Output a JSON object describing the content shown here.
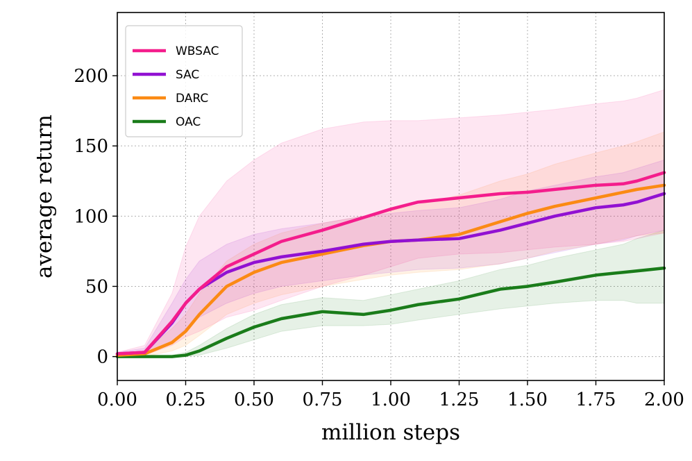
{
  "chart_data": {
    "type": "line",
    "title": "",
    "xlabel": "million steps",
    "ylabel": "average return",
    "xlim": [
      0,
      2
    ],
    "ylim": [
      -17,
      245
    ],
    "grid": true,
    "legend_position": "top-left",
    "x_ticks": [
      {
        "value": 0.0,
        "label": "0.00"
      },
      {
        "value": 0.25,
        "label": "0.25"
      },
      {
        "value": 0.5,
        "label": "0.50"
      },
      {
        "value": 0.75,
        "label": "0.75"
      },
      {
        "value": 1.0,
        "label": "1.00"
      },
      {
        "value": 1.25,
        "label": "1.25"
      },
      {
        "value": 1.5,
        "label": "1.50"
      },
      {
        "value": 1.75,
        "label": "1.75"
      },
      {
        "value": 2.0,
        "label": "2.00"
      }
    ],
    "y_ticks": [
      {
        "value": 0,
        "label": "0"
      },
      {
        "value": 50,
        "label": "50"
      },
      {
        "value": 100,
        "label": "100"
      },
      {
        "value": 150,
        "label": "150"
      },
      {
        "value": 200,
        "label": "200"
      }
    ],
    "x": [
      0,
      0.1,
      0.2,
      0.25,
      0.3,
      0.4,
      0.5,
      0.6,
      0.75,
      0.9,
      1.0,
      1.1,
      1.25,
      1.4,
      1.5,
      1.6,
      1.75,
      1.85,
      1.9,
      2.0
    ],
    "series": [
      {
        "name": "WBSAC",
        "color": "#f41d8c",
        "values": [
          2,
          3,
          25,
          38,
          48,
          64,
          73,
          82,
          90,
          99,
          105,
          110,
          113,
          116,
          117,
          119,
          122,
          123,
          125,
          131
        ],
        "band_upper": [
          3,
          8,
          45,
          78,
          100,
          125,
          140,
          152,
          162,
          167,
          168,
          168,
          170,
          172,
          174,
          176,
          180,
          182,
          184,
          190
        ],
        "band_lower": [
          0,
          1,
          8,
          14,
          18,
          28,
          33,
          40,
          50,
          58,
          64,
          70,
          73,
          74,
          76,
          78,
          80,
          82,
          84,
          88
        ]
      },
      {
        "name": "SAC",
        "color": "#9111d2",
        "values": [
          2,
          3,
          24,
          38,
          48,
          60,
          67,
          71,
          75,
          80,
          82,
          83,
          84,
          90,
          95,
          100,
          106,
          108,
          110,
          116
        ],
        "band_upper": [
          3,
          6,
          38,
          55,
          68,
          80,
          87,
          91,
          95,
          100,
          102,
          104,
          106,
          112,
          118,
          122,
          128,
          131,
          134,
          140
        ],
        "band_lower": [
          0,
          1,
          10,
          20,
          28,
          38,
          45,
          50,
          54,
          58,
          60,
          62,
          63,
          66,
          70,
          74,
          80,
          83,
          86,
          90
        ]
      },
      {
        "name": "DARC",
        "color": "#fb8a14",
        "values": [
          1,
          2,
          10,
          18,
          30,
          50,
          60,
          67,
          73,
          79,
          82,
          83,
          87,
          96,
          102,
          107,
          113,
          117,
          119,
          122
        ],
        "band_upper": [
          2,
          4,
          20,
          30,
          45,
          68,
          80,
          88,
          95,
          100,
          104,
          108,
          115,
          125,
          130,
          137,
          145,
          150,
          153,
          160
        ],
        "band_lower": [
          0,
          0,
          4,
          8,
          15,
          30,
          38,
          44,
          50,
          55,
          58,
          60,
          62,
          66,
          70,
          75,
          80,
          84,
          86,
          88
        ]
      },
      {
        "name": "OAC",
        "color": "#1a7c1a",
        "values": [
          0,
          0,
          0,
          1,
          4,
          13,
          21,
          27,
          32,
          30,
          33,
          37,
          41,
          48,
          50,
          53,
          58,
          60,
          61,
          63
        ],
        "band_upper": [
          0,
          0,
          1,
          3,
          8,
          20,
          30,
          37,
          42,
          40,
          44,
          48,
          54,
          62,
          65,
          70,
          76,
          80,
          84,
          90
        ],
        "band_lower": [
          0,
          0,
          0,
          0,
          1,
          6,
          12,
          18,
          22,
          22,
          23,
          26,
          30,
          34,
          36,
          38,
          40,
          40,
          38,
          38
        ]
      }
    ]
  }
}
